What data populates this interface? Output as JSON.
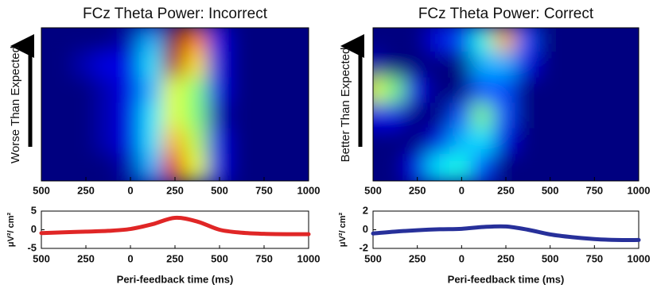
{
  "chart_data": [
    {
      "type": "heatmap",
      "title": "FCz Theta Power: Incorrect",
      "ylabel": "Worse Than Expected",
      "colormap": "jet",
      "zlim": [
        0,
        1
      ],
      "xlim": [
        -500,
        1000
      ],
      "xticks": [
        {
          "value": -500,
          "label": "500"
        },
        {
          "value": -250,
          "label": "250"
        },
        0,
        250,
        500,
        750,
        1000
      ],
      "x": [
        -500,
        -375,
        -250,
        -125,
        0,
        125,
        250,
        375,
        500,
        625,
        750,
        875,
        1000
      ],
      "z": [
        [
          0,
          0,
          0,
          0,
          0.05,
          0.3,
          1.0,
          0.75,
          0.1,
          0,
          0,
          0,
          0
        ],
        [
          0,
          0,
          0.05,
          0.1,
          0.1,
          0.35,
          0.95,
          0.65,
          0.1,
          0,
          0,
          0,
          0
        ],
        [
          0,
          0,
          0,
          0.05,
          0.1,
          0.3,
          0.6,
          0.5,
          0.1,
          0,
          0,
          0,
          0
        ],
        [
          0,
          0,
          0,
          0.05,
          0.1,
          0.35,
          0.6,
          0.5,
          0.05,
          0,
          0,
          0,
          0
        ],
        [
          0,
          0,
          0,
          0.05,
          0.1,
          0.35,
          0.7,
          0.55,
          0.1,
          0,
          0,
          0,
          0
        ],
        [
          0,
          0,
          0,
          0,
          0.05,
          0.3,
          0.9,
          0.6,
          0.1,
          0,
          0,
          0,
          0
        ]
      ]
    },
    {
      "type": "line",
      "ylabel": "μV²/ cm²",
      "xlabel": "Peri-feedback time (ms)",
      "color": "#e02626",
      "xlim": [
        -500,
        1000
      ],
      "ylim": [
        -5,
        5
      ],
      "xticks": [
        {
          "value": -500,
          "label": "500"
        },
        {
          "value": -250,
          "label": "250"
        },
        0,
        250,
        500,
        750,
        1000
      ],
      "yticks": [
        -5,
        0,
        5
      ],
      "x": [
        -500,
        -375,
        -250,
        -125,
        0,
        125,
        250,
        375,
        500,
        625,
        750,
        875,
        1000
      ],
      "values": [
        -0.9,
        -0.7,
        -0.5,
        -0.3,
        0.2,
        1.5,
        3.2,
        2.2,
        0,
        -0.8,
        -1.1,
        -1.2,
        -1.2
      ]
    },
    {
      "type": "heatmap",
      "title": "FCz Theta Power: Correct",
      "ylabel": "Better Than Expected",
      "colormap": "jet",
      "zlim": [
        0,
        1
      ],
      "xlim": [
        -500,
        1000
      ],
      "xticks": [
        {
          "value": -500,
          "label": "500"
        },
        {
          "value": -250,
          "label": "250"
        },
        0,
        250,
        500,
        750,
        1000
      ],
      "x": [
        -500,
        -375,
        -250,
        -125,
        0,
        125,
        250,
        375,
        500,
        625,
        750,
        875,
        1000
      ],
      "z": [
        [
          0,
          0,
          0,
          0.1,
          0.2,
          0.4,
          0.7,
          0.2,
          0,
          0,
          0,
          0,
          0
        ],
        [
          0.05,
          0,
          0,
          0,
          0,
          0.3,
          0.3,
          0.1,
          0,
          0,
          0,
          0,
          0
        ],
        [
          0.6,
          0.5,
          0.1,
          0,
          0,
          0.2,
          0.2,
          0,
          0,
          0,
          0,
          0,
          0
        ],
        [
          0.1,
          0.1,
          0,
          0,
          0.2,
          0.5,
          0.2,
          0,
          0,
          0,
          0,
          0,
          0
        ],
        [
          0,
          0,
          0,
          0.1,
          0.3,
          0.35,
          0.1,
          0,
          0,
          0,
          0,
          0,
          0
        ],
        [
          0,
          0,
          0.1,
          0.35,
          0.4,
          0.2,
          0,
          0,
          0,
          0,
          0,
          0,
          0
        ]
      ]
    },
    {
      "type": "line",
      "ylabel": "μV²/ cm²",
      "xlabel": "Peri-feedback time (ms)",
      "color": "#27309a",
      "xlim": [
        -500,
        1000
      ],
      "ylim": [
        -2,
        2
      ],
      "xticks": [
        {
          "value": -500,
          "label": "500"
        },
        {
          "value": -250,
          "label": "250"
        },
        0,
        250,
        500,
        750,
        1000
      ],
      "yticks": [
        -2,
        0,
        2
      ],
      "x": [
        -500,
        -375,
        -250,
        -125,
        0,
        125,
        250,
        375,
        500,
        625,
        750,
        875,
        1000
      ],
      "values": [
        -0.4,
        -0.2,
        -0.05,
        0.05,
        0.1,
        0.3,
        0.35,
        0,
        -0.5,
        -0.8,
        -1.0,
        -1.1,
        -1.1
      ]
    }
  ]
}
